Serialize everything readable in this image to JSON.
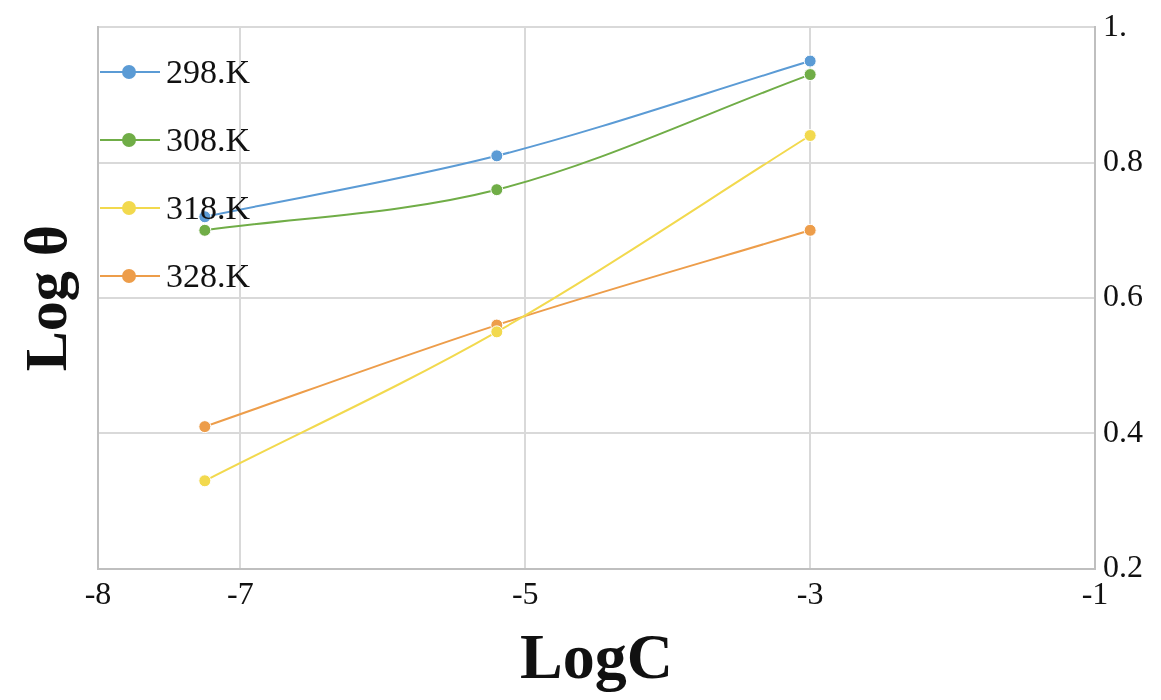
{
  "chart_data": {
    "type": "line",
    "xlabel": "LogC",
    "ylabel": "Log θ",
    "x": [
      -7.25,
      -5.2,
      -3
    ],
    "series": [
      {
        "name": "298.K",
        "color": "#5b9bd5",
        "values": [
          0.72,
          0.81,
          0.95
        ]
      },
      {
        "name": "308.K",
        "color": "#70ad47",
        "values": [
          0.7,
          0.76,
          0.93
        ]
      },
      {
        "name": "318.K",
        "color": "#f2d94e",
        "values": [
          0.33,
          0.55,
          0.84
        ]
      },
      {
        "name": "328.K",
        "color": "#ed9d4a",
        "values": [
          0.41,
          0.56,
          0.7
        ]
      }
    ],
    "xlim": [
      -8,
      -1
    ],
    "xticks": [
      -8,
      -7,
      -5,
      -3,
      -1
    ],
    "ylim": [
      0.2,
      1
    ],
    "yticks": [
      0.2,
      0.4,
      0.6,
      0.8,
      {
        "value": 1,
        "label": "1."
      }
    ],
    "grid": true,
    "legend": "top left",
    "marker": "circle",
    "line_style": "solid"
  }
}
